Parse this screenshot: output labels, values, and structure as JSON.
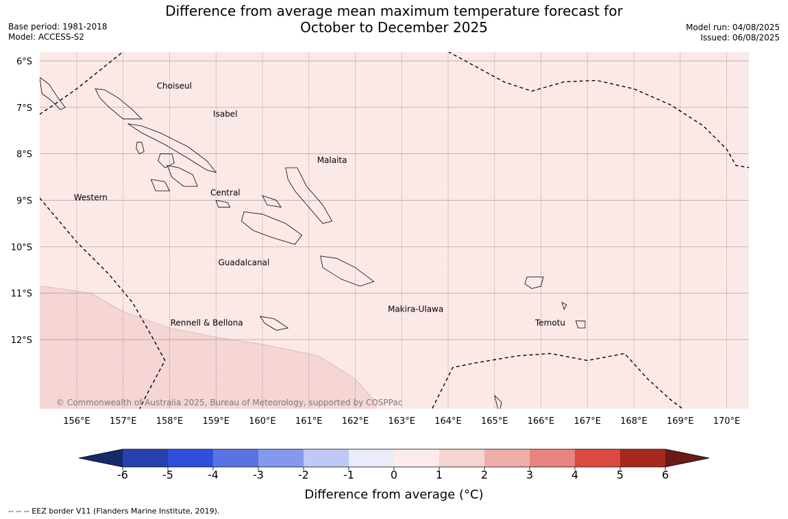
{
  "title": {
    "line1": "Difference from average mean maximum temperature forecast for",
    "line2": "October to December 2025"
  },
  "meta_left": {
    "base_period": "Base period: 1981-2018",
    "model": "Model: ACCESS-S2"
  },
  "meta_right": {
    "model_run": "Model run: 04/08/2025",
    "issued": "Issued: 06/08/2025"
  },
  "map": {
    "lon_range": [
      155.2,
      170.5
    ],
    "lat_range": [
      -13.5,
      -5.8
    ],
    "lat_ticks": [
      {
        "value": -6,
        "label": "6°S"
      },
      {
        "value": -7,
        "label": "7°S"
      },
      {
        "value": -8,
        "label": "8°S"
      },
      {
        "value": -9,
        "label": "9°S"
      },
      {
        "value": -10,
        "label": "10°S"
      },
      {
        "value": -11,
        "label": "11°S"
      },
      {
        "value": -12,
        "label": "12°S"
      }
    ],
    "lon_ticks": [
      {
        "value": 156,
        "label": "156°E"
      },
      {
        "value": 157,
        "label": "157°E"
      },
      {
        "value": 158,
        "label": "158°E"
      },
      {
        "value": 159,
        "label": "159°E"
      },
      {
        "value": 160,
        "label": "160°E"
      },
      {
        "value": 161,
        "label": "161°E"
      },
      {
        "value": 162,
        "label": "162°E"
      },
      {
        "value": 163,
        "label": "163°E"
      },
      {
        "value": 164,
        "label": "164°E"
      },
      {
        "value": 165,
        "label": "165°E"
      },
      {
        "value": 166,
        "label": "166°E"
      },
      {
        "value": 167,
        "label": "167°E"
      },
      {
        "value": 168,
        "label": "168°E"
      },
      {
        "value": 169,
        "label": "169°E"
      },
      {
        "value": 170,
        "label": "170°E"
      }
    ],
    "base_fill": "#fbe9e8",
    "warm_zone_fill": "#f5d6d4",
    "warm_zone_range": "1 to 2 °C",
    "province_labels": [
      {
        "name": "Choiseul",
        "lon": 158.1,
        "lat": -6.6
      },
      {
        "name": "Isabel",
        "lon": 159.2,
        "lat": -7.2
      },
      {
        "name": "Malaita",
        "lon": 161.5,
        "lat": -8.2
      },
      {
        "name": "Western",
        "lon": 156.3,
        "lat": -9.0
      },
      {
        "name": "Central",
        "lon": 159.2,
        "lat": -8.9
      },
      {
        "name": "Guadalcanal",
        "lon": 159.6,
        "lat": -10.4
      },
      {
        "name": "Makira-Ulawa",
        "lon": 163.3,
        "lat": -11.4
      },
      {
        "name": "Rennell & Bellona",
        "lon": 158.8,
        "lat": -11.7
      },
      {
        "name": "Temotu",
        "lon": 166.2,
        "lat": -11.7
      }
    ],
    "eez_border_label": "EEZ border",
    "copyright": "© Commonwealth of Australia 2025, Bureau of Meteorology, supported by COSPPac"
  },
  "colorbar": {
    "label": "Difference from average (°C)",
    "ticks": [
      "-6",
      "-5",
      "-4",
      "-3",
      "-2",
      "-1",
      "0",
      "1",
      "2",
      "3",
      "4",
      "5",
      "6"
    ],
    "colors": [
      "#2541ad",
      "#2f4fdc",
      "#5873e3",
      "#8599ec",
      "#c0c9f5",
      "#e8ecfb",
      "#fdebeb",
      "#f6d4d2",
      "#efaeaa",
      "#e8847e",
      "#dc4a42",
      "#a8281f"
    ],
    "under_color": "#16296b",
    "over_color": "#6b1b16"
  },
  "caption": "--  --  -- EEZ border V11 (Flanders Marine Institute, 2019)."
}
